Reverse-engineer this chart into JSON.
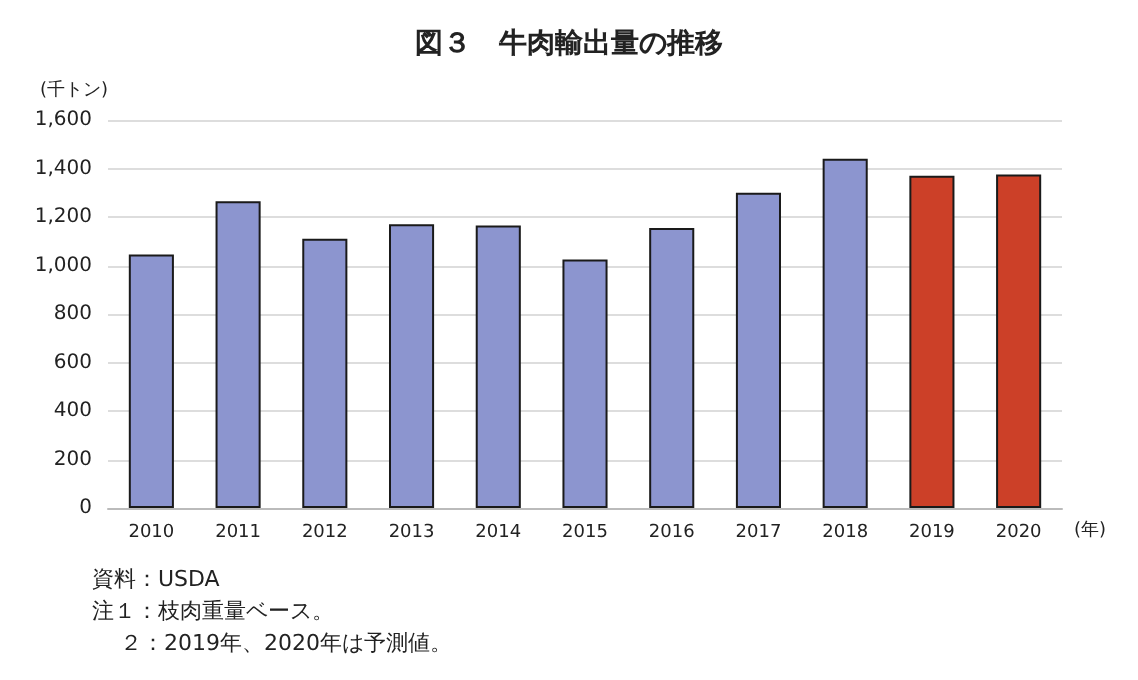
{
  "chart_data": {
    "type": "bar",
    "title": "図３　牛肉輸出量の推移",
    "ylabel": "(千トン)",
    "xlabel": "(年)",
    "categories": [
      "2010",
      "2011",
      "2012",
      "2013",
      "2014",
      "2015",
      "2016",
      "2017",
      "2018",
      "2019",
      "2020"
    ],
    "values": [
      1045,
      1265,
      1110,
      1170,
      1165,
      1025,
      1155,
      1300,
      1440,
      1370,
      1375
    ],
    "colors": [
      "#8c95cf",
      "#8c95cf",
      "#8c95cf",
      "#8c95cf",
      "#8c95cf",
      "#8c95cf",
      "#8c95cf",
      "#8c95cf",
      "#8c95cf",
      "#cc4028",
      "#cc4028"
    ],
    "ylim": [
      0,
      1600
    ],
    "yticks": [
      0,
      200,
      400,
      600,
      800,
      {
        "value": 1000,
        "label": "1,000"
      },
      {
        "value": 1200,
        "label": "1,200"
      },
      {
        "value": 1400,
        "label": "1,400"
      },
      {
        "value": 1600,
        "label": "1,600"
      }
    ],
    "grid": "y",
    "annotations": [
      "資料：USDA",
      "注１：枝肉重量ベース。",
      "２：2019年、2020年は予測値。"
    ]
  }
}
